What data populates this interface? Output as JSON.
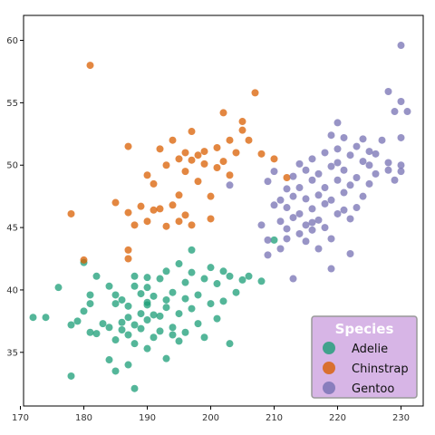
{
  "chart_data": {
    "type": "scatter",
    "xlabel": "",
    "ylabel": "",
    "xlim": [
      170.5,
      233.5
    ],
    "ylim": [
      30.7,
      62.0
    ],
    "x_ticks": [
      170,
      180,
      190,
      200,
      210,
      220,
      230
    ],
    "y_ticks": [
      35,
      40,
      45,
      50,
      55,
      60
    ],
    "grid": false,
    "legend": {
      "title": "Species",
      "placement": "bottom-right",
      "background": "#d7b5e6",
      "border": "#999999",
      "entries": [
        "Adelie",
        "Chinstrap",
        "Gentoo"
      ]
    },
    "series": [
      {
        "name": "Adelie",
        "color": "#1b9e77",
        "points": [
          [
            172,
            37.8
          ],
          [
            174,
            37.8
          ],
          [
            176,
            40.2
          ],
          [
            178,
            33.1
          ],
          [
            178,
            37.2
          ],
          [
            179,
            37.5
          ],
          [
            180,
            38.3
          ],
          [
            180,
            42.2
          ],
          [
            181,
            36.6
          ],
          [
            181,
            38.9
          ],
          [
            181,
            39.6
          ],
          [
            182,
            41.1
          ],
          [
            182,
            36.5
          ],
          [
            183,
            37.3
          ],
          [
            184,
            40.3
          ],
          [
            184,
            34.4
          ],
          [
            184,
            37.0
          ],
          [
            185,
            39.6
          ],
          [
            185,
            36.0
          ],
          [
            185,
            38.9
          ],
          [
            185,
            33.5
          ],
          [
            186,
            37.4
          ],
          [
            186,
            36.8
          ],
          [
            186,
            39.2
          ],
          [
            187,
            36.4
          ],
          [
            187,
            38.7
          ],
          [
            187,
            37.8
          ],
          [
            187,
            34.0
          ],
          [
            188,
            40.3
          ],
          [
            188,
            35.7
          ],
          [
            188,
            37.2
          ],
          [
            188,
            41.1
          ],
          [
            188,
            32.1
          ],
          [
            189,
            36.9
          ],
          [
            189,
            39.7
          ],
          [
            189,
            38.1
          ],
          [
            190,
            40.2
          ],
          [
            190,
            39.0
          ],
          [
            190,
            35.3
          ],
          [
            190,
            38.8
          ],
          [
            190,
            37.6
          ],
          [
            190,
            41.0
          ],
          [
            191,
            36.2
          ],
          [
            191,
            39.5
          ],
          [
            191,
            38.0
          ],
          [
            192,
            40.9
          ],
          [
            192,
            36.7
          ],
          [
            192,
            37.9
          ],
          [
            193,
            39.2
          ],
          [
            193,
            34.5
          ],
          [
            193,
            38.6
          ],
          [
            193,
            41.5
          ],
          [
            194,
            36.4
          ],
          [
            194,
            39.8
          ],
          [
            194,
            37.0
          ],
          [
            195,
            42.1
          ],
          [
            195,
            38.1
          ],
          [
            195,
            35.9
          ],
          [
            196,
            40.6
          ],
          [
            196,
            39.3
          ],
          [
            196,
            36.6
          ],
          [
            197,
            41.4
          ],
          [
            197,
            38.5
          ],
          [
            197,
            43.2
          ],
          [
            198,
            39.6
          ],
          [
            198,
            37.3
          ],
          [
            199,
            40.9
          ],
          [
            199,
            36.2
          ],
          [
            200,
            41.8
          ],
          [
            200,
            38.9
          ],
          [
            201,
            37.7
          ],
          [
            201,
            40.5
          ],
          [
            202,
            41.5
          ],
          [
            202,
            39.1
          ],
          [
            203,
            35.7
          ],
          [
            203,
            41.1
          ],
          [
            204,
            39.8
          ],
          [
            205,
            40.8
          ],
          [
            206,
            41.1
          ],
          [
            208,
            40.7
          ],
          [
            210,
            44.0
          ]
        ]
      },
      {
        "name": "Chinstrap",
        "color": "#d95f02",
        "points": [
          [
            178,
            46.1
          ],
          [
            180,
            42.4
          ],
          [
            181,
            58.0
          ],
          [
            185,
            47.0
          ],
          [
            187,
            51.5
          ],
          [
            187,
            46.2
          ],
          [
            187,
            43.2
          ],
          [
            187,
            42.5
          ],
          [
            188,
            45.2
          ],
          [
            189,
            46.7
          ],
          [
            190,
            45.5
          ],
          [
            190,
            49.2
          ],
          [
            191,
            46.4
          ],
          [
            191,
            48.5
          ],
          [
            192,
            46.5
          ],
          [
            192,
            51.3
          ],
          [
            193,
            50.0
          ],
          [
            193,
            45.1
          ],
          [
            194,
            46.8
          ],
          [
            194,
            52.0
          ],
          [
            195,
            50.5
          ],
          [
            195,
            45.5
          ],
          [
            195,
            47.6
          ],
          [
            196,
            51.0
          ],
          [
            196,
            49.5
          ],
          [
            196,
            46.0
          ],
          [
            197,
            50.4
          ],
          [
            197,
            52.7
          ],
          [
            197,
            45.2
          ],
          [
            198,
            50.8
          ],
          [
            198,
            48.7
          ],
          [
            199,
            51.1
          ],
          [
            199,
            50.1
          ],
          [
            200,
            47.5
          ],
          [
            200,
            45.7
          ],
          [
            201,
            51.4
          ],
          [
            201,
            49.8
          ],
          [
            202,
            54.2
          ],
          [
            202,
            50.3
          ],
          [
            203,
            52.0
          ],
          [
            203,
            49.2
          ],
          [
            204,
            51.0
          ],
          [
            205,
            53.5
          ],
          [
            205,
            52.8
          ],
          [
            206,
            52.0
          ],
          [
            207,
            55.8
          ],
          [
            208,
            50.9
          ],
          [
            210,
            50.5
          ],
          [
            212,
            49.0
          ]
        ]
      },
      {
        "name": "Gentoo",
        "color": "#7570b3",
        "points": [
          [
            203,
            48.4
          ],
          [
            208,
            45.2
          ],
          [
            209,
            48.7
          ],
          [
            209,
            44.0
          ],
          [
            210,
            49.5
          ],
          [
            210,
            46.8
          ],
          [
            211,
            47.2
          ],
          [
            211,
            45.5
          ],
          [
            211,
            43.3
          ],
          [
            212,
            48.1
          ],
          [
            212,
            46.6
          ],
          [
            212,
            44.9
          ],
          [
            213,
            49.1
          ],
          [
            213,
            47.5
          ],
          [
            213,
            45.8
          ],
          [
            214,
            48.2
          ],
          [
            214,
            46.1
          ],
          [
            214,
            50.1
          ],
          [
            214,
            44.5
          ],
          [
            215,
            47.3
          ],
          [
            215,
            45.2
          ],
          [
            215,
            49.6
          ],
          [
            215,
            43.9
          ],
          [
            216,
            48.8
          ],
          [
            216,
            46.5
          ],
          [
            216,
            45.4
          ],
          [
            216,
            50.5
          ],
          [
            217,
            47.6
          ],
          [
            217,
            45.6
          ],
          [
            217,
            43.3
          ],
          [
            217,
            49.3
          ],
          [
            218,
            51.0
          ],
          [
            218,
            46.9
          ],
          [
            218,
            45.0
          ],
          [
            218,
            48.2
          ],
          [
            219,
            47.2
          ],
          [
            219,
            49.9
          ],
          [
            219,
            52.4
          ],
          [
            219,
            44.1
          ],
          [
            220,
            50.2
          ],
          [
            220,
            48.8
          ],
          [
            220,
            46.1
          ],
          [
            220,
            51.3
          ],
          [
            220,
            53.4
          ],
          [
            221,
            49.6
          ],
          [
            221,
            46.4
          ],
          [
            221,
            47.8
          ],
          [
            221,
            52.2
          ],
          [
            222,
            50.8
          ],
          [
            222,
            48.4
          ],
          [
            222,
            45.7
          ],
          [
            223,
            51.5
          ],
          [
            223,
            49.0
          ],
          [
            223,
            46.6
          ],
          [
            224,
            50.3
          ],
          [
            224,
            47.5
          ],
          [
            224,
            52.1
          ],
          [
            225,
            50.0
          ],
          [
            225,
            51.1
          ],
          [
            225,
            48.5
          ],
          [
            226,
            49.3
          ],
          [
            226,
            50.9
          ],
          [
            227,
            52.0
          ],
          [
            228,
            55.9
          ],
          [
            228,
            50.2
          ],
          [
            228,
            49.6
          ],
          [
            229,
            54.3
          ],
          [
            229,
            48.8
          ],
          [
            230,
            59.6
          ],
          [
            230,
            55.1
          ],
          [
            230,
            50.0
          ],
          [
            230,
            49.5
          ],
          [
            230,
            52.2
          ],
          [
            231,
            54.3
          ],
          [
            213,
            40.9
          ],
          [
            209,
            42.8
          ],
          [
            222,
            42.9
          ],
          [
            219,
            41.7
          ],
          [
            216,
            44.8
          ],
          [
            212,
            44.1
          ]
        ]
      }
    ]
  }
}
